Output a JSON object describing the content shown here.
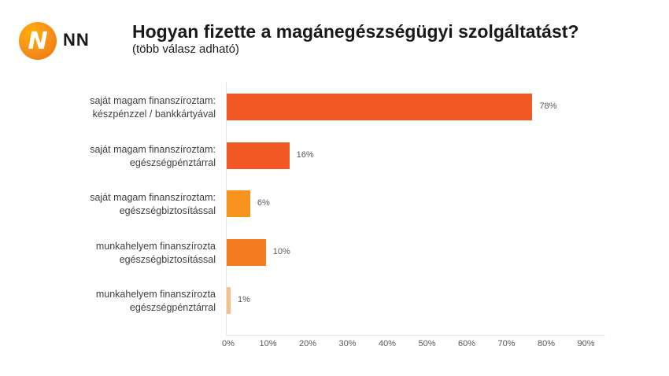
{
  "brand": {
    "name": "NN",
    "logo_letter": "N"
  },
  "title": "Hogyan fizette a magánegészségügyi szolgáltatást?",
  "subtitle": "(több válasz adható)",
  "chart_data": {
    "type": "bar",
    "orientation": "horizontal",
    "title": "Hogyan fizette a magánegészségügyi szolgáltatást?",
    "subtitle": "(több válasz adható)",
    "categories": [
      "saját magam finanszíroztam: készpénzzel / bankkártyával",
      "saját magam finanszíroztam: egészségpénztárral",
      "saját magam finanszíroztam: egészségbiztosítással",
      "munkahelyem finanszírozta egészségbiztosítással",
      "munkahelyem finanszírozta egészségpénztárral"
    ],
    "category_lines": [
      [
        "saját magam finanszíroztam:",
        "készpénzzel / bankkártyával"
      ],
      [
        "saját magam finanszíroztam:",
        "egészségpénztárral"
      ],
      [
        "saját magam finanszíroztam:",
        "egészségbiztosítással"
      ],
      [
        "munkahelyem finanszírozta",
        "egészségbiztosítással"
      ],
      [
        "munkahelyem finanszírozta",
        "egészségpénztárral"
      ]
    ],
    "values": [
      78,
      16,
      6,
      10,
      1
    ],
    "value_labels": [
      "78%",
      "16%",
      "6%",
      "10%",
      "1%"
    ],
    "bar_colors": [
      "#f05a22",
      "#f05a22",
      "#f7941d",
      "#f47b20",
      "#f5c08a"
    ],
    "xlabel": "",
    "ylabel": "",
    "xlim": [
      0,
      95
    ],
    "x_ticks": [
      "0%",
      "10%",
      "20%",
      "30%",
      "40%",
      "50%",
      "60%",
      "70%",
      "80%",
      "90%"
    ],
    "grid": false,
    "legend": "none"
  }
}
